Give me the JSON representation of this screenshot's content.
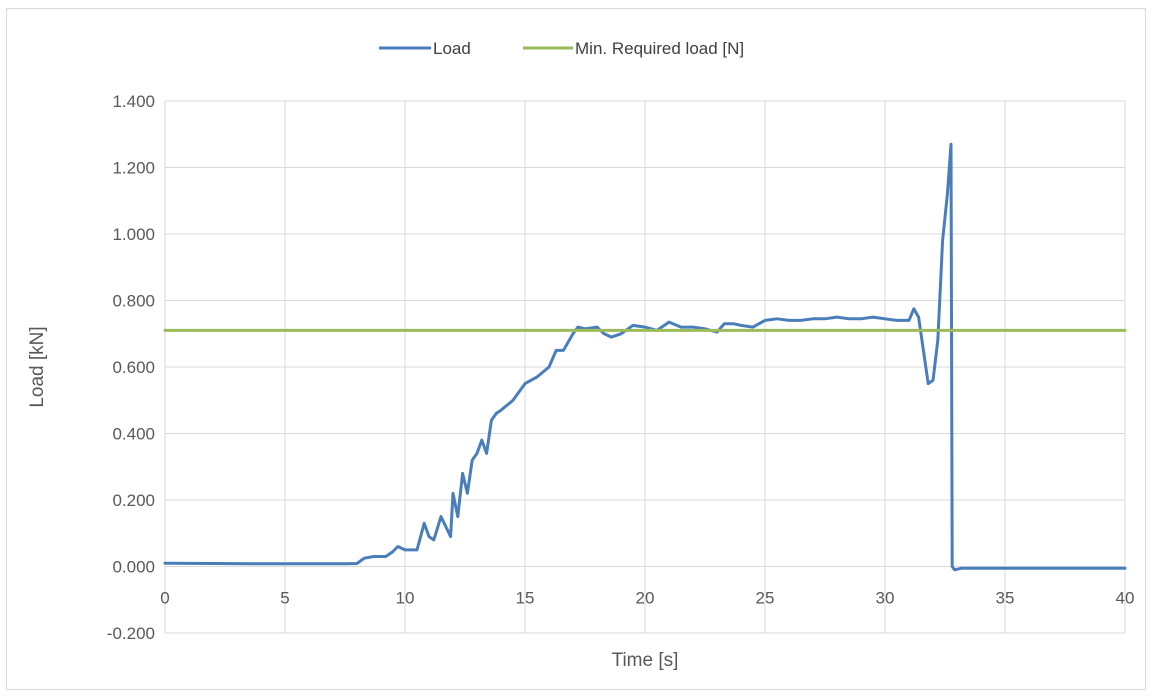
{
  "chart_data": {
    "type": "line",
    "title": "",
    "xlabel": "Time [s]",
    "ylabel": "Load [kN]",
    "xlim": [
      0,
      40
    ],
    "ylim": [
      -0.2,
      1.4
    ],
    "x_ticks": [
      0,
      5,
      10,
      15,
      20,
      25,
      30,
      35,
      40
    ],
    "x_tick_labels": [
      "0",
      "5",
      "10",
      "15",
      "20",
      "25",
      "30",
      "35",
      "40"
    ],
    "y_ticks": [
      -0.2,
      0,
      0.2,
      0.4,
      0.6,
      0.8,
      1.0,
      1.2,
      1.4
    ],
    "y_tick_labels": [
      "-0.200",
      "0.000",
      "0.200",
      "0.400",
      "0.600",
      "0.800",
      "1.000",
      "1.200",
      "1.400"
    ],
    "grid": true,
    "legend_position": "top-center",
    "series": [
      {
        "name": "Load",
        "color": "#4a7ebb",
        "x": [
          0,
          2,
          4,
          6,
          7.5,
          8.0,
          8.3,
          8.7,
          9.2,
          9.5,
          9.7,
          10.0,
          10.5,
          10.8,
          11.0,
          11.2,
          11.5,
          11.7,
          11.9,
          12.0,
          12.2,
          12.4,
          12.6,
          12.8,
          13.0,
          13.2,
          13.4,
          13.6,
          13.8,
          14.0,
          14.5,
          15.0,
          15.5,
          16.0,
          16.3,
          16.6,
          17.0,
          17.2,
          17.5,
          18.0,
          18.3,
          18.6,
          19.0,
          19.5,
          20.0,
          20.5,
          21.0,
          21.5,
          22.0,
          22.5,
          23.0,
          23.3,
          23.7,
          24.0,
          24.5,
          25.0,
          25.5,
          26.0,
          26.5,
          27.0,
          27.5,
          28.0,
          28.5,
          29.0,
          29.5,
          30.0,
          30.5,
          31.0,
          31.2,
          31.4,
          31.6,
          31.7,
          31.8,
          32.0,
          32.2,
          32.4,
          32.6,
          32.7,
          32.75,
          32.8,
          32.9,
          33.2,
          34,
          35,
          36,
          38,
          40
        ],
        "y": [
          0.01,
          0.009,
          0.008,
          0.008,
          0.008,
          0.009,
          0.025,
          0.03,
          0.03,
          0.045,
          0.06,
          0.05,
          0.05,
          0.13,
          0.09,
          0.08,
          0.15,
          0.12,
          0.09,
          0.22,
          0.15,
          0.28,
          0.22,
          0.32,
          0.34,
          0.38,
          0.34,
          0.44,
          0.46,
          0.47,
          0.5,
          0.55,
          0.57,
          0.6,
          0.65,
          0.65,
          0.7,
          0.72,
          0.715,
          0.72,
          0.7,
          0.69,
          0.7,
          0.725,
          0.72,
          0.71,
          0.735,
          0.72,
          0.72,
          0.715,
          0.705,
          0.73,
          0.73,
          0.725,
          0.72,
          0.74,
          0.745,
          0.74,
          0.74,
          0.745,
          0.745,
          0.75,
          0.745,
          0.745,
          0.75,
          0.745,
          0.74,
          0.74,
          0.775,
          0.75,
          0.65,
          0.6,
          0.55,
          0.56,
          0.68,
          0.98,
          1.12,
          1.22,
          1.27,
          0.0,
          -0.01,
          -0.005,
          -0.005,
          -0.005,
          -0.005,
          -0.005,
          -0.005
        ]
      },
      {
        "name": "Min. Required load [N]",
        "color": "#9bbb59",
        "x": [
          0,
          40
        ],
        "y": [
          0.71,
          0.71
        ]
      }
    ]
  }
}
